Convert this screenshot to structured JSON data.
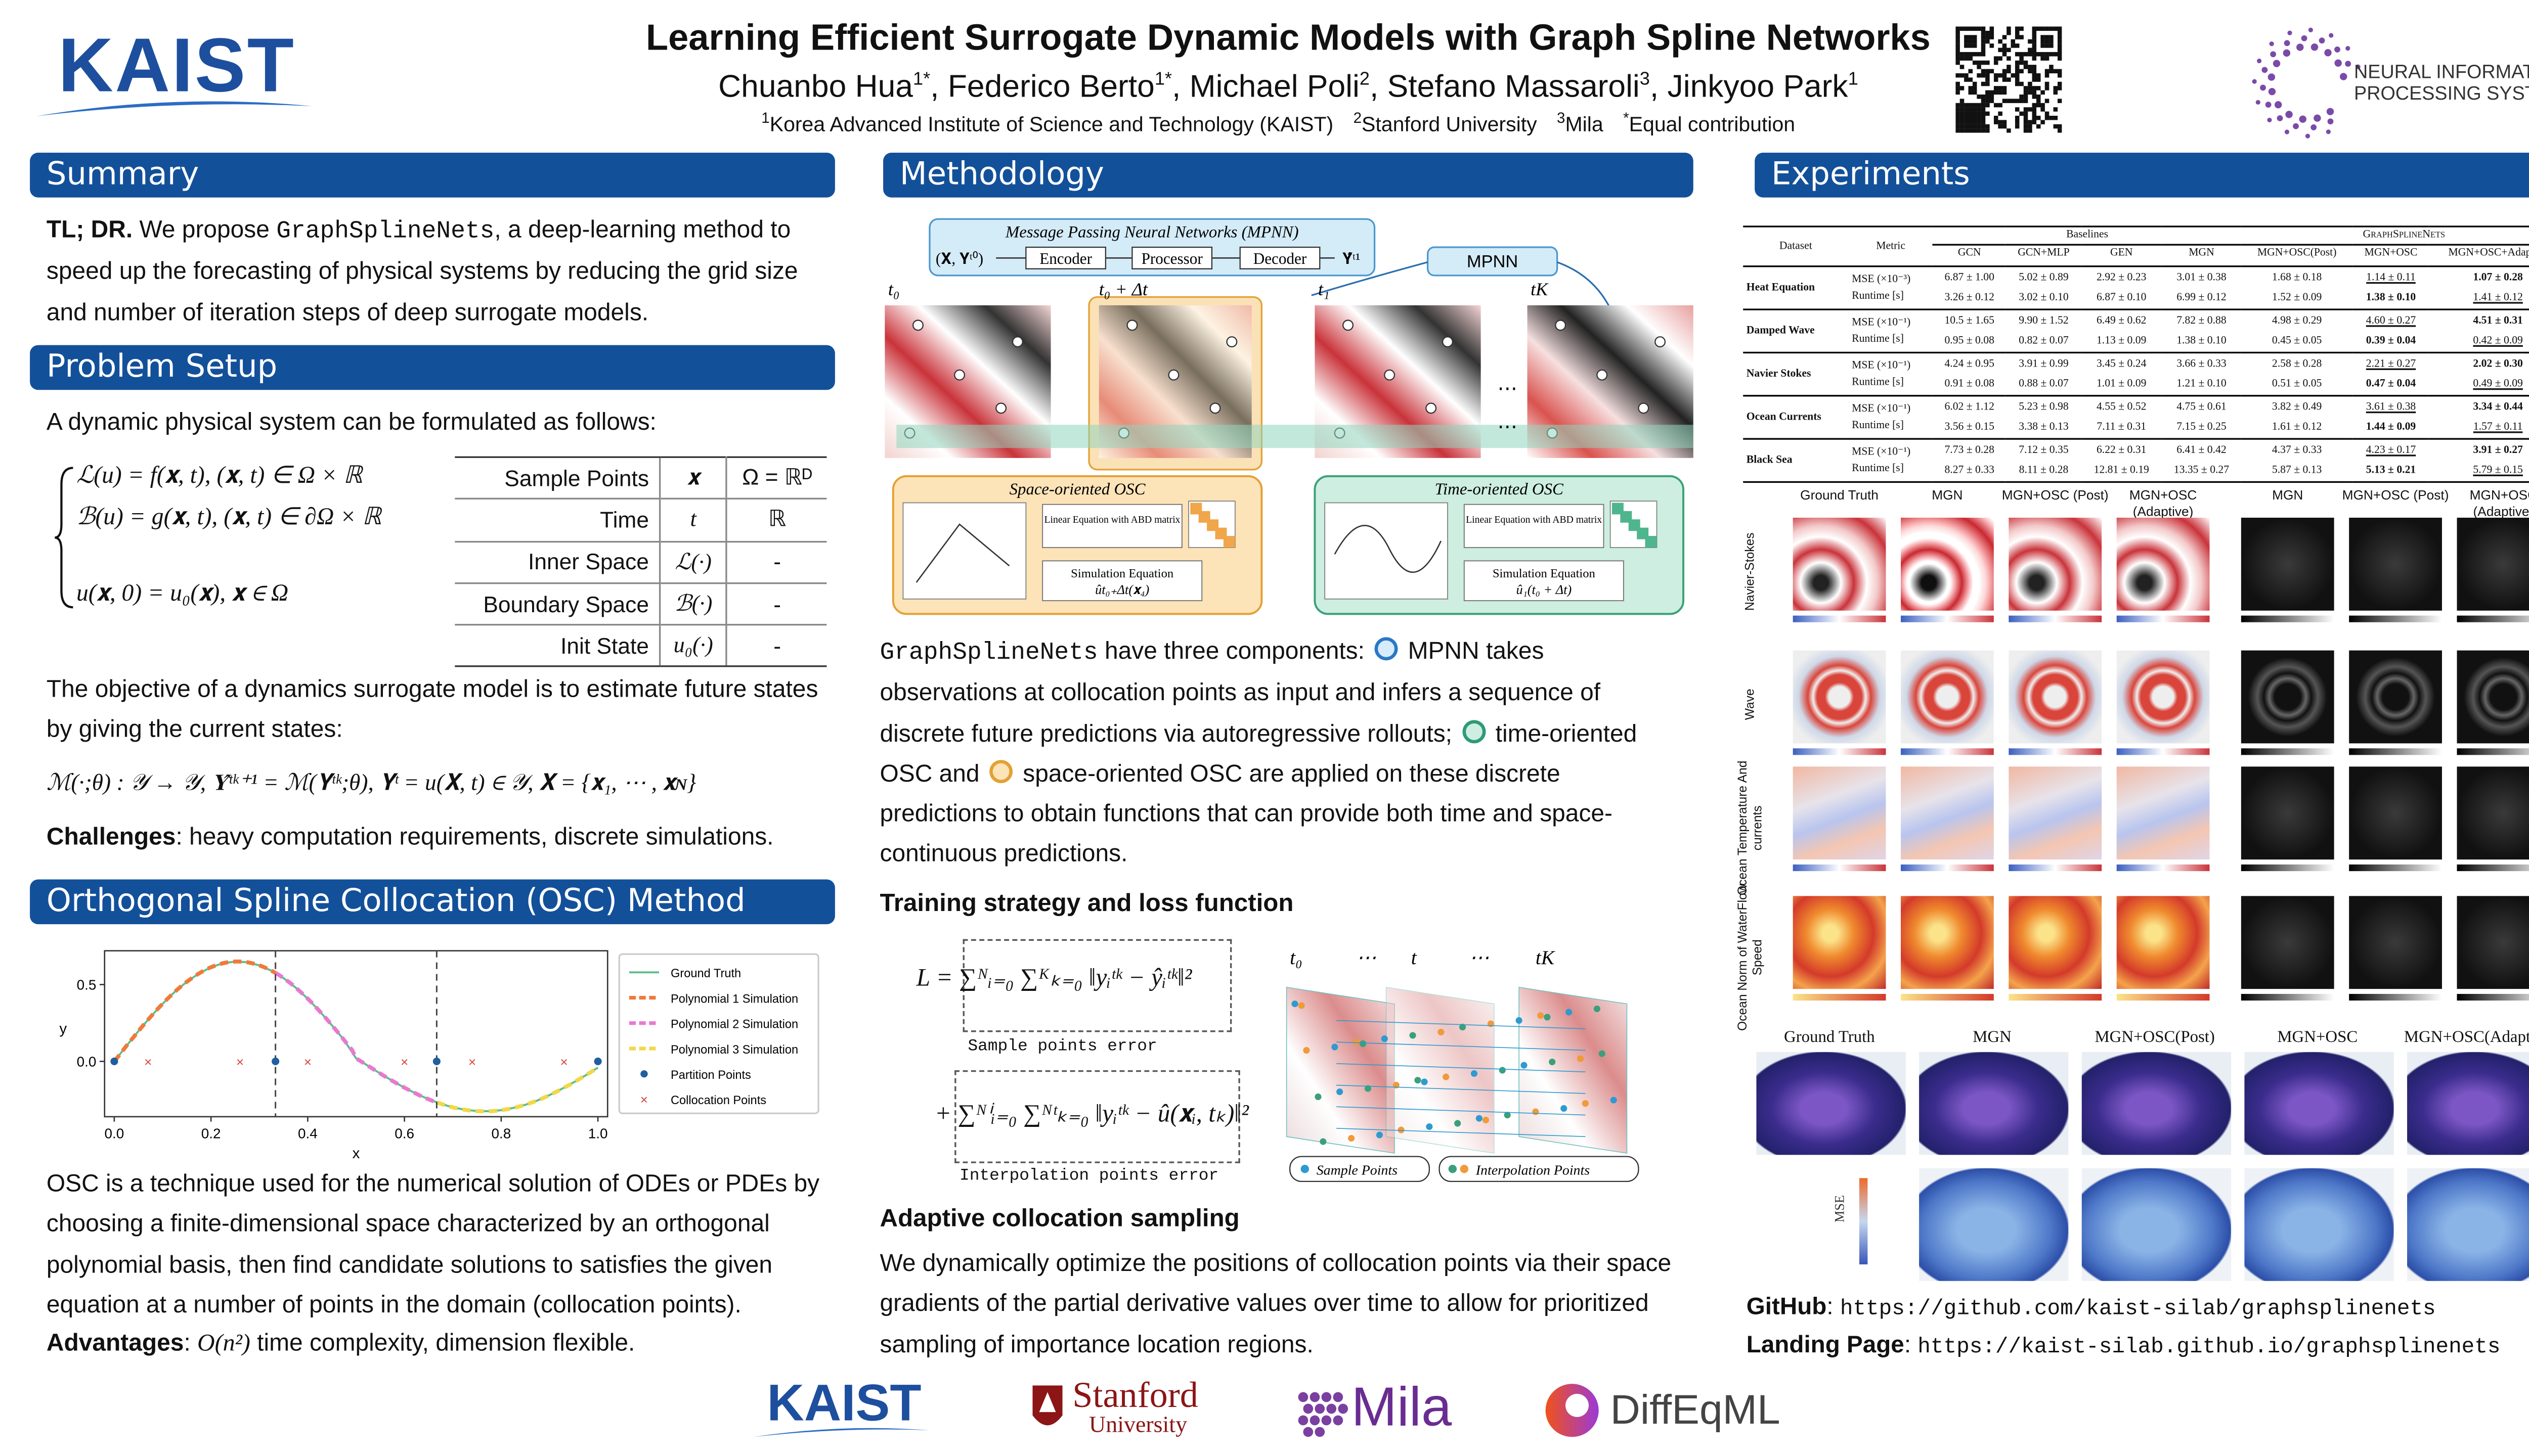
{
  "header": {
    "logo": "KAIST",
    "title": "Learning Efficient Surrogate Dynamic Models with Graph Spline Networks",
    "authors": [
      {
        "name": "Chuanbo Hua",
        "mark": "1*"
      },
      {
        "name": "Federico Berto",
        "mark": "1*"
      },
      {
        "name": "Michael Poli",
        "mark": "2"
      },
      {
        "name": "Stefano Massaroli",
        "mark": "3"
      },
      {
        "name": "Jinkyoo Park",
        "mark": "1"
      }
    ],
    "separator": ",",
    "affiliations": [
      {
        "mark": "1",
        "name": "Korea Advanced Institute of Science and Technology (KAIST)"
      },
      {
        "mark": "2",
        "name": "Stanford  University"
      },
      {
        "mark": "3",
        "name": "Mila"
      },
      {
        "mark": "*",
        "name": "Equal contribution"
      }
    ],
    "neurips": [
      "NEURAL INFORMATION",
      "PROCESSING SYSTEMS"
    ]
  },
  "summary": {
    "heading": "Summary",
    "lead": "TL; DR.",
    "text1": " We propose ",
    "code": "GraphSplineNets",
    "text2": ", a deep-learning method to speed up the forecasting of physical systems by reducing the grid size and number of iteration steps of deep surrogate models."
  },
  "problem": {
    "heading": "Problem Setup",
    "intro": "A dynamic physical system can be formulated as follows:",
    "equations": [
      "ℒ(u) = f(𝐱, t), (𝐱, t) ∈ Ω × ℝ",
      "ℬ(u) = g(𝐱, t), (𝐱, t) ∈ ∂Ω × ℝ",
      "u(𝐱, 0) = u₀(𝐱), 𝐱 ∈ Ω"
    ],
    "table": [
      [
        "Sample Points",
        "𝐱",
        "Ω = ℝᴰ"
      ],
      [
        "Time",
        "t",
        "ℝ"
      ],
      [
        "Inner Space",
        "ℒ(·)",
        "-"
      ],
      [
        "Boundary Space",
        "ℬ(·)",
        "-"
      ],
      [
        "Init State",
        "u₀(·)",
        "-"
      ]
    ],
    "objective": "The objective of a dynamics surrogate model is to estimate future states by giving the current states:",
    "formula": "ℳ(·;θ) : 𝒴 → 𝒴, 𝐘̂ᵗᵏ⁺¹ = ℳ(𝐘ᵗᵏ;θ), 𝐘ᵗ = u(𝐗, t) ∈ 𝒴, 𝐗 = {𝐱₁, ⋯ , 𝐱ɴ}",
    "challenges_label": "Challenges",
    "challenges": ": heavy computation requirements, discrete simulations."
  },
  "osc": {
    "heading": "Orthogonal Spline Collocation (OSC) Method",
    "plot": {
      "xlabel": "x",
      "ylabel": "y",
      "xlim": [
        -0.02,
        1.02
      ],
      "ylim": [
        -0.36,
        0.72
      ],
      "xticks": [
        {
          "value": 0,
          "label": "0.0"
        },
        {
          "value": 0.2,
          "label": "0.2"
        },
        {
          "value": 0.4,
          "label": "0.4"
        },
        {
          "value": 0.6,
          "label": "0.6"
        },
        {
          "value": 0.8,
          "label": "0.8"
        },
        {
          "value": 1,
          "label": "1.0"
        }
      ],
      "yticks": [
        {
          "value": 0,
          "label": "0.0"
        },
        {
          "value": 0.5,
          "label": "0.5"
        }
      ],
      "legend": [
        "Ground Truth",
        "Polynomial 1 Simulation",
        "Polynomial 2 Simulation",
        "Polynomial 3 Simulation",
        "Partition Points",
        "Collocation Points"
      ]
    },
    "text": "OSC is a technique used for the numerical solution of ODEs or PDEs by choosing a finite-dimensional space characterized by an orthogonal polynomial basis, then find candidate solutions to satisfies the given equation at a number of points in the domain (collocation points).",
    "adv_label": "Advantages",
    "adv_sep": ": ",
    "adv_math": "O(n²)",
    "adv_text": " time complexity, dimension flexible."
  },
  "methodology": {
    "heading": "Methodology",
    "diagram": {
      "mpnn_title": "Message Passing Neural Networks (MPNN)",
      "input": "(𝐗, 𝐘ᵗ⁰)",
      "encoder": "Encoder",
      "processor": "Processor",
      "decoder": "Decoder",
      "output": "𝐘̂ᵗ¹",
      "mpnn": "MPNN",
      "times": [
        "t₀",
        "t₀ + Δt",
        "t₁",
        "tK"
      ],
      "dots": "⋯",
      "space_title": "Space-oriented OSC",
      "time_title": "Time-oriented OSC",
      "linear": "Linear Equation with ABD matrix",
      "sim_label": "Simulation Equation",
      "space_sim": "ût₀₊Δt(𝐱₄)",
      "time_sim": "û₁(t₀ + Δt)"
    },
    "code": "GraphSplineNets",
    "text1": " have three components: ",
    "text2": " MPNN takes observations at collocation points as input and infers a sequence of discrete future predictions via autoregressive rollouts; ",
    "text3": " time-oriented OSC and ",
    "text4": " space-oriented OSC are applied on these discrete predictions to obtain functions that can provide both time and space-continuous predictions.",
    "training_heading": "Training strategy and loss function",
    "loss1": "L = ∑ᴺᵢ₌₀ ∑ᴷₖ₌₀ ‖yᵢᵗᵏ − ŷᵢᵗᵏ‖²",
    "loss1_label": "Sample points error",
    "loss2": "+ ∑ᴺⁱᵢ₌₀ ∑ᴺᵗₖ₌₀ ‖yᵢᵗᵏ − û(𝐱ᵢ, tₖ)‖²",
    "loss2_label": "Interpolation points error",
    "fig_times": [
      "t₀",
      "⋯",
      "t",
      "⋯",
      "tK"
    ],
    "fig_sample": "Sample Points",
    "fig_interp": "Interpolation Points",
    "adaptive_heading": "Adaptive collocation sampling",
    "adaptive_text": "We dynamically optimize the positions of collocation points via their space gradients of the partial derivative values over time to allow for prioritized sampling of importance location regions."
  },
  "experiments": {
    "heading": "Experiments",
    "table": {
      "dataset": "Dataset",
      "metric": "Metric",
      "baselines": "Baselines",
      "ours": "GraphSplineNets",
      "columns": [
        "GCN",
        "GCN+MLP",
        "GEN",
        "MGN",
        "MGN+OSC(Post)",
        "MGN+OSC",
        "MGN+OSC+Adaptive"
      ],
      "rows": [
        {
          "dataset": "Heat Equation",
          "metrics": [
            {
              "name": "MSE (×10⁻³)",
              "cells": [
                "6.87 ± 1.00",
                "5.02 ± 0.89",
                "2.92 ± 0.23",
                "3.01 ± 0.38",
                "1.68 ± 0.18",
                "1.14 ± 0.11",
                "1.07 ± 0.28"
              ],
              "bold": 6,
              "underline": 5
            },
            {
              "name": "Runtime [s]",
              "cells": [
                "3.26 ± 0.12",
                "3.02 ± 0.10",
                "6.87 ± 0.10",
                "6.99 ± 0.12",
                "1.52 ± 0.09",
                "1.38 ± 0.10",
                "1.41 ± 0.12"
              ],
              "bold": 5,
              "underline": 6
            }
          ]
        },
        {
          "dataset": "Damped Wave",
          "metrics": [
            {
              "name": "MSE (×10⁻¹)",
              "cells": [
                "10.5 ± 1.65",
                "9.90 ± 1.52",
                "6.49 ± 0.62",
                "7.82 ± 0.88",
                "4.98 ± 0.29",
                "4.60 ± 0.27",
                "4.51 ± 0.31"
              ],
              "bold": 6,
              "underline": 5
            },
            {
              "name": "Runtime [s]",
              "cells": [
                "0.95 ± 0.08",
                "0.82 ± 0.07",
                "1.13 ± 0.09",
                "1.38 ± 0.10",
                "0.45 ± 0.05",
                "0.39 ± 0.04",
                "0.42 ± 0.09"
              ],
              "bold": 5,
              "underline": 6
            }
          ]
        },
        {
          "dataset": "Navier Stokes",
          "metrics": [
            {
              "name": "MSE (×10⁻¹)",
              "cells": [
                "4.24 ± 0.95",
                "3.91 ± 0.99",
                "3.45 ± 0.24",
                "3.66 ± 0.33",
                "2.58 ± 0.28",
                "2.21 ± 0.27",
                "2.02 ± 0.30"
              ],
              "bold": 6,
              "underline": 5
            },
            {
              "name": "Runtime [s]",
              "cells": [
                "0.91 ± 0.08",
                "0.88 ± 0.07",
                "1.01 ± 0.09",
                "1.21 ± 0.10",
                "0.51 ± 0.05",
                "0.47 ± 0.04",
                "0.49 ± 0.09"
              ],
              "bold": 5,
              "underline": 6
            }
          ]
        },
        {
          "dataset": "Ocean Currents",
          "metrics": [
            {
              "name": "MSE (×10⁻¹)",
              "cells": [
                "6.02 ± 1.12",
                "5.23 ± 0.98",
                "4.55 ± 0.52",
                "4.75 ± 0.61",
                "3.82 ± 0.49",
                "3.61 ± 0.38",
                "3.34 ± 0.44"
              ],
              "bold": 6,
              "underline": 5
            },
            {
              "name": "Runtime [s]",
              "cells": [
                "3.56 ± 0.15",
                "3.38 ± 0.13",
                "7.11 ± 0.31",
                "7.15 ± 0.25",
                "1.61 ± 0.12",
                "1.44 ± 0.09",
                "1.57 ± 0.11"
              ],
              "bold": 5,
              "underline": 6
            }
          ]
        },
        {
          "dataset": "Black Sea",
          "metrics": [
            {
              "name": "MSE (×10⁻¹)",
              "cells": [
                "7.73 ± 0.28",
                "7.12 ± 0.35",
                "6.22 ± 0.31",
                "6.41 ± 0.42",
                "4.37 ± 0.33",
                "4.23 ± 0.17",
                "3.91 ± 0.27"
              ],
              "bold": 6,
              "underline": 5
            },
            {
              "name": "Runtime [s]",
              "cells": [
                "8.27 ± 0.33",
                "8.11 ± 0.28",
                "12.81 ± 0.19",
                "13.35 ± 0.27",
                "5.87 ± 0.13",
                "5.13 ± 0.21",
                "5.79 ± 0.15"
              ],
              "bold": 5,
              "underline": 6
            }
          ]
        }
      ]
    },
    "grid_columns": [
      "Ground Truth",
      "MGN",
      "MGN+OSC (Post)",
      "MGN+OSC (Adaptive)",
      "MGN",
      "MGN+OSC (Post)",
      "MGN+OSC (Adaptive)"
    ],
    "grid_rows": [
      "Navier-Stokes",
      "Wave",
      "Ocean Temperature And currents",
      "Ocean Norm of WaterFlow Speed"
    ],
    "sea_columns": [
      "Ground Truth",
      "MGN",
      "MGN+OSC(Post)",
      "MGN+OSC",
      "MGN+OSC(Adaptive)"
    ],
    "sea_mse": "MSE",
    "github_label": "GitHub",
    "link_sep": ": ",
    "github": "https://github.com/kaist-silab/graphsplinenets",
    "landing_label": "Landing Page",
    "landing": "https://kaist-silab.github.io/graphsplinenets"
  },
  "footer": {
    "kaist": "KAIST",
    "stanford": "Stanford",
    "stanford_sub": "University",
    "mila": "Mila",
    "diffeqml": "DiffEqML"
  }
}
